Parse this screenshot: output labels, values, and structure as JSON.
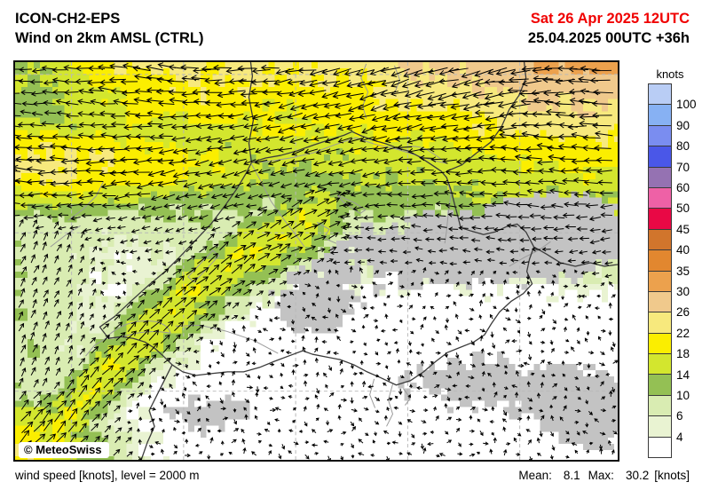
{
  "header": {
    "model": "ICON-CH2-EPS",
    "product": "Wind on 2km AMSL (CTRL)",
    "valid_time": "Sat 26 Apr 2025 12UTC",
    "run_info": "25.04.2025 00UTC +36h"
  },
  "colors": {
    "valid_time_red": "#f00000",
    "terrain_gray": "#c3c3c3",
    "map_border": "#0a0a0a",
    "country_border": "#3b3b3b",
    "river_gray": "#9a9a9a",
    "gridline_gray": "#b8b8b8"
  },
  "map": {
    "copyright": "© MeteoSwiss"
  },
  "legend": {
    "title": "knots",
    "boundary_labels": [
      "100",
      "90",
      "80",
      "70",
      "60",
      "50",
      "45",
      "40",
      "35",
      "30",
      "26",
      "22",
      "18",
      "14",
      "10",
      "6",
      "4"
    ],
    "colors_top_to_bottom": [
      "#b9cdf5",
      "#87b1f3",
      "#7a8df0",
      "#4a57e8",
      "#9572b2",
      "#ee61a6",
      "#e90845",
      "#d1752c",
      "#e2872f",
      "#eca14d",
      "#f0c98c",
      "#f7e97d",
      "#fbee00",
      "#d3e62e",
      "#94c054",
      "#d9ecb2",
      "#e9f3d2",
      "#ffffff"
    ],
    "thresholds_knots": [
      4,
      6,
      10,
      14,
      18,
      22,
      26,
      30,
      35,
      40,
      45,
      50,
      60,
      70,
      80,
      90,
      100
    ]
  },
  "footer": {
    "left": "wind speed [knots], level = 2000 m",
    "mean_label": "Mean:",
    "mean_value": "8.1",
    "max_label": "Max:",
    "max_value": "30.2",
    "units_label": "[knots]"
  }
}
